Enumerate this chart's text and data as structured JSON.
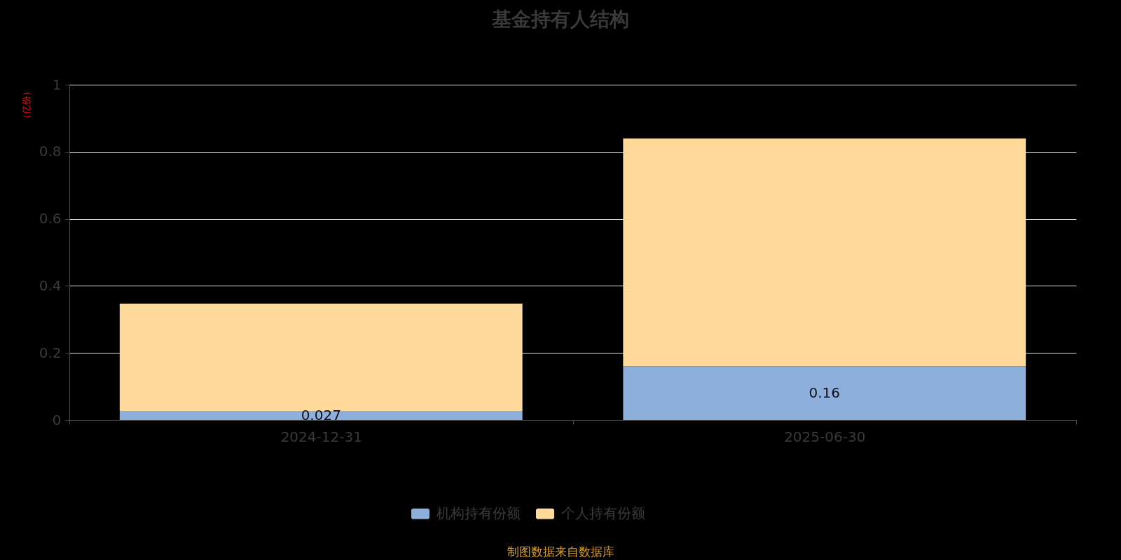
{
  "chart_data": {
    "type": "bar",
    "title": "基金持有人结构",
    "ylabel": "（亿份）",
    "categories": [
      "2024-12-31",
      "2025-06-30"
    ],
    "stacked": true,
    "series": [
      {
        "name": "机构持有份额",
        "color": "#8eaedc",
        "values": [
          0.027,
          0.16
        ],
        "value_labels": [
          "0.027",
          "0.16"
        ]
      },
      {
        "name": "个人持有份额",
        "color": "#ffd99a",
        "values": [
          0.32,
          0.68
        ]
      }
    ],
    "ylim": [
      0,
      1
    ],
    "yticks": [
      0,
      0.2,
      0.4,
      0.6,
      0.8,
      1
    ],
    "grid": "y",
    "legend": "bottom",
    "annotations": [
      "制图数据来自数据库"
    ]
  }
}
